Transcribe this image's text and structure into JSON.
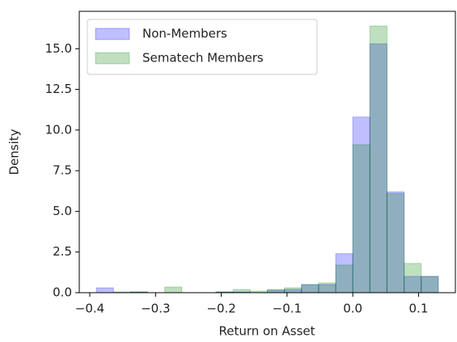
{
  "chart_data": {
    "type": "histogram",
    "xlabel": "Return on Asset",
    "ylabel": "Density",
    "bins": [
      -0.39,
      -0.364,
      -0.338,
      -0.312,
      -0.286,
      -0.26,
      -0.234,
      -0.208,
      -0.182,
      -0.156,
      -0.13,
      -0.104,
      -0.078,
      -0.052,
      -0.026,
      0,
      0.026,
      0.052,
      0.078,
      0.104,
      0.13
    ],
    "series": [
      {
        "name": "Non-Members",
        "color": "#0000ff",
        "values": [
          0.3,
          0,
          0.05,
          0,
          0,
          0,
          0,
          0.05,
          0.05,
          0,
          0.15,
          0.2,
          0.5,
          0.5,
          2.4,
          10.8,
          15.3,
          6.2,
          1.0,
          1.0
        ]
      },
      {
        "name": "Sematech Members",
        "color": "#008000",
        "values": [
          0,
          0.05,
          0.05,
          0,
          0.35,
          0,
          0,
          0.05,
          0.2,
          0.1,
          0.2,
          0.3,
          0.5,
          0.6,
          1.7,
          9.1,
          16.4,
          6.1,
          1.8,
          1.0
        ]
      }
    ],
    "xlim": [
      -0.416,
      0.156
    ],
    "ylim": [
      0,
      17.3
    ],
    "xticks": [
      {
        "value": -0.4,
        "label": "−0.4"
      },
      {
        "value": -0.3,
        "label": "−0.3"
      },
      {
        "value": -0.2,
        "label": "−0.2"
      },
      {
        "value": -0.1,
        "label": "−0.1"
      },
      {
        "value": 0,
        "label": "0.0"
      },
      0.1
    ],
    "yticks": [
      {
        "value": 0,
        "label": "0.0"
      },
      2.5,
      {
        "value": 5,
        "label": "5.0"
      },
      7.5,
      {
        "value": 10,
        "label": "10.0"
      },
      12.5,
      {
        "value": 15,
        "label": "15.0"
      }
    ],
    "legend": "upper left",
    "alpha": 0.25
  }
}
